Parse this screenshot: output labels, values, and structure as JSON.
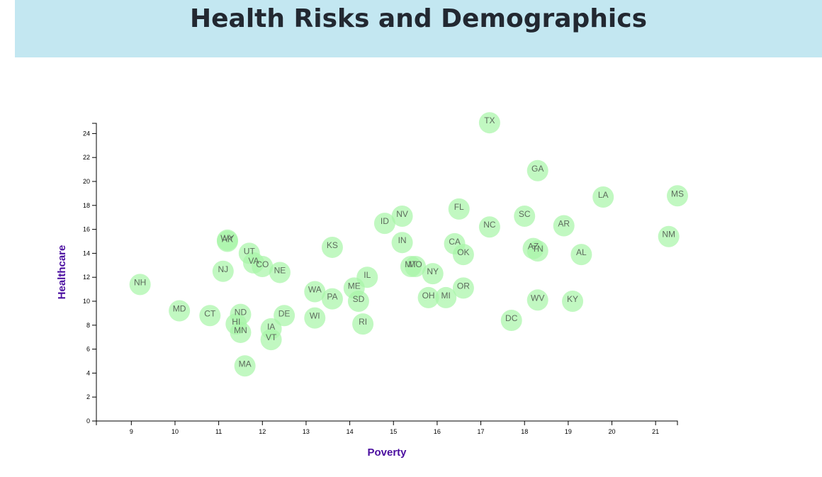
{
  "page": {
    "title": "Health Risks and Demographics"
  },
  "colors": {
    "header_background": "#c3e7f1",
    "title_text": "#222831",
    "marker_fill": "#a6f5a6",
    "marker_label": "#5d6b5d",
    "axis_title": "#4b0fa0"
  },
  "chart_data": {
    "type": "scatter",
    "title": "",
    "xlabel": "Poverty",
    "ylabel": "Healthcare",
    "xlim": [
      8.2,
      21.5
    ],
    "ylim": [
      0,
      25
    ],
    "x_ticks": [
      9,
      10,
      11,
      12,
      13,
      14,
      15,
      16,
      17,
      18,
      19,
      20,
      21
    ],
    "y_ticks": [
      0,
      2,
      4,
      6,
      8,
      10,
      12,
      14,
      16,
      18,
      20,
      22,
      24
    ],
    "grid": false,
    "legend": "none",
    "points": [
      {
        "label": "TX",
        "x": 17.2,
        "y": 24.9
      },
      {
        "label": "GA",
        "x": 18.3,
        "y": 20.9
      },
      {
        "label": "LA",
        "x": 19.8,
        "y": 18.7
      },
      {
        "label": "MS",
        "x": 21.5,
        "y": 18.8
      },
      {
        "label": "FL",
        "x": 16.5,
        "y": 17.7
      },
      {
        "label": "SC",
        "x": 18.0,
        "y": 17.1
      },
      {
        "label": "NV",
        "x": 15.2,
        "y": 17.1
      },
      {
        "label": "ID",
        "x": 14.8,
        "y": 16.5
      },
      {
        "label": "NC",
        "x": 17.2,
        "y": 16.2
      },
      {
        "label": "AR",
        "x": 18.9,
        "y": 16.3
      },
      {
        "label": "NM",
        "x": 21.3,
        "y": 15.4
      },
      {
        "label": "WY",
        "x": 11.2,
        "y": 15.1
      },
      {
        "label": "AK",
        "x": 11.2,
        "y": 15.0
      },
      {
        "label": "IN",
        "x": 15.2,
        "y": 14.9
      },
      {
        "label": "CA",
        "x": 16.4,
        "y": 14.8
      },
      {
        "label": "KS",
        "x": 13.6,
        "y": 14.5
      },
      {
        "label": "AZ",
        "x": 18.2,
        "y": 14.4
      },
      {
        "label": "TN",
        "x": 18.3,
        "y": 14.2
      },
      {
        "label": "OK",
        "x": 16.6,
        "y": 13.9
      },
      {
        "label": "AL",
        "x": 19.3,
        "y": 13.9
      },
      {
        "label": "UT",
        "x": 11.7,
        "y": 14.0
      },
      {
        "label": "VA",
        "x": 11.8,
        "y": 13.2
      },
      {
        "label": "CO",
        "x": 12.0,
        "y": 12.9
      },
      {
        "label": "MT",
        "x": 15.4,
        "y": 12.9
      },
      {
        "label": "MO",
        "x": 15.5,
        "y": 12.9
      },
      {
        "label": "NE",
        "x": 12.4,
        "y": 12.4
      },
      {
        "label": "NJ",
        "x": 11.1,
        "y": 12.5
      },
      {
        "label": "NY",
        "x": 15.9,
        "y": 12.3
      },
      {
        "label": "IL",
        "x": 14.4,
        "y": 12.0
      },
      {
        "label": "NH",
        "x": 9.2,
        "y": 11.4
      },
      {
        "label": "ME",
        "x": 14.1,
        "y": 11.1
      },
      {
        "label": "OR",
        "x": 16.6,
        "y": 11.1
      },
      {
        "label": "WA",
        "x": 13.2,
        "y": 10.8
      },
      {
        "label": "MI",
        "x": 16.2,
        "y": 10.3
      },
      {
        "label": "OH",
        "x": 15.8,
        "y": 10.3
      },
      {
        "label": "PA",
        "x": 13.6,
        "y": 10.2
      },
      {
        "label": "WV",
        "x": 18.3,
        "y": 10.1
      },
      {
        "label": "KY",
        "x": 19.1,
        "y": 10.0
      },
      {
        "label": "SD",
        "x": 14.2,
        "y": 10.0
      },
      {
        "label": "MD",
        "x": 10.1,
        "y": 9.2
      },
      {
        "label": "ND",
        "x": 11.5,
        "y": 8.9
      },
      {
        "label": "CT",
        "x": 10.8,
        "y": 8.8
      },
      {
        "label": "DE",
        "x": 12.5,
        "y": 8.8
      },
      {
        "label": "WI",
        "x": 13.2,
        "y": 8.6
      },
      {
        "label": "DC",
        "x": 17.7,
        "y": 8.4
      },
      {
        "label": "HI",
        "x": 11.4,
        "y": 8.1
      },
      {
        "label": "RI",
        "x": 14.3,
        "y": 8.1
      },
      {
        "label": "IA",
        "x": 12.2,
        "y": 7.7
      },
      {
        "label": "MN",
        "x": 11.5,
        "y": 7.4
      },
      {
        "label": "VT",
        "x": 12.2,
        "y": 6.8
      },
      {
        "label": "MA",
        "x": 11.6,
        "y": 4.6
      }
    ]
  }
}
